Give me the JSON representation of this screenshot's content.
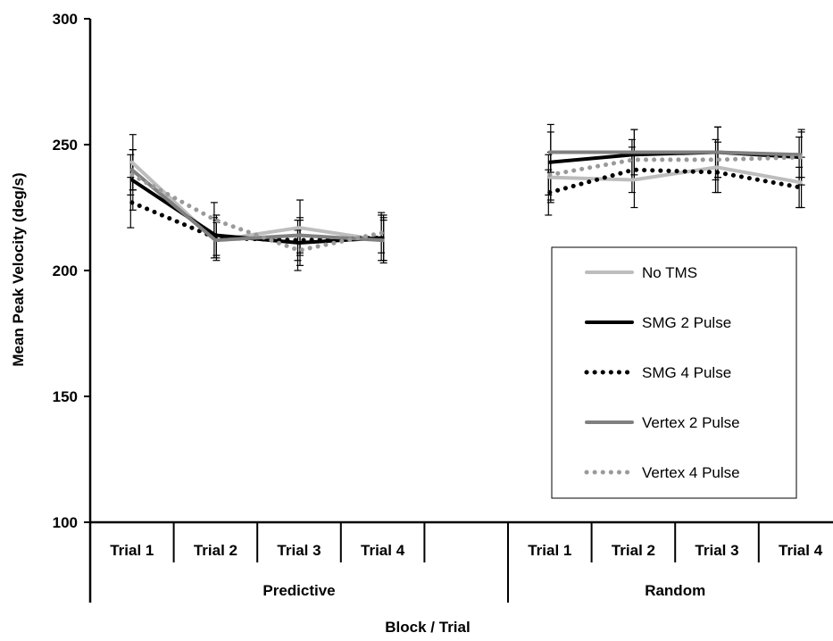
{
  "chart_data": {
    "type": "line",
    "xlabel": "Block / Trial",
    "ylabel": "Mean Peak Velocity (deg/s)",
    "ylim": [
      100,
      300
    ],
    "yticks": [
      100,
      150,
      200,
      250,
      300
    ],
    "legend_position": "right",
    "groups": [
      {
        "name": "Predictive",
        "categories": [
          "Trial 1",
          "Trial 2",
          "Trial 3",
          "Trial 4",
          ""
        ]
      },
      {
        "name": "Random",
        "categories": [
          "Trial 1",
          "Trial 2",
          "Trial 3",
          "Trial 4"
        ]
      }
    ],
    "series": [
      {
        "name": "No TMS",
        "color": "#bdbdbd",
        "style": "solid",
        "predictive": [
          243,
          212,
          217,
          212
        ],
        "predictive_err": [
          11,
          7,
          11,
          9
        ],
        "random": [
          237,
          236,
          241,
          235
        ],
        "random_err": [
          10,
          11,
          10,
          10
        ]
      },
      {
        "name": "SMG 2 Pulse",
        "color": "#000000",
        "style": "solid",
        "predictive": [
          236,
          214,
          211,
          213
        ],
        "predictive_err": [
          12,
          8,
          9,
          9
        ],
        "random": [
          243,
          246,
          247,
          245
        ],
        "random_err": [
          15,
          10,
          10,
          11
        ]
      },
      {
        "name": "SMG 4 Pulse",
        "color": "#000000",
        "style": "dotted",
        "predictive": [
          227,
          213,
          212,
          213
        ],
        "predictive_err": [
          10,
          8,
          8,
          9
        ],
        "random": [
          231,
          240,
          239,
          233
        ],
        "random_err": [
          9,
          9,
          8,
          8
        ]
      },
      {
        "name": "Vertex 2 Pulse",
        "color": "#808080",
        "style": "solid",
        "predictive": [
          240,
          212,
          214,
          212
        ],
        "predictive_err": [
          8,
          8,
          7,
          8
        ],
        "random": [
          247,
          247,
          247,
          246
        ],
        "random_err": [
          8,
          9,
          10,
          9
        ]
      },
      {
        "name": "Vertex 4 Pulse",
        "color": "#9a9a9a",
        "style": "dotted",
        "predictive": [
          238,
          220,
          208,
          215
        ],
        "predictive_err": [
          8,
          7,
          8,
          8
        ],
        "random": [
          238,
          244,
          244,
          245
        ],
        "random_err": [
          8,
          8,
          8,
          8
        ]
      }
    ]
  }
}
